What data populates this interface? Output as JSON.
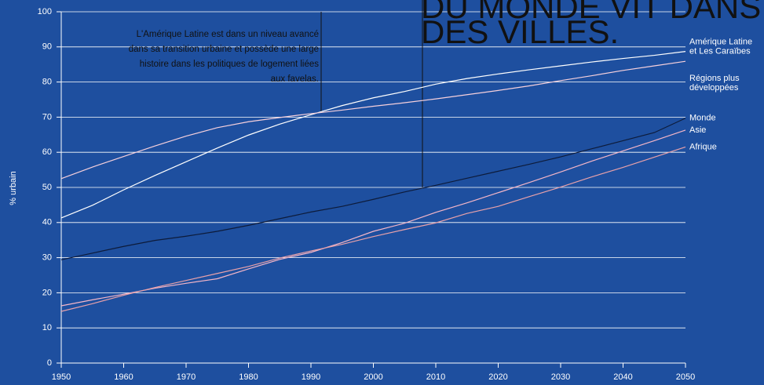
{
  "chart_data": {
    "type": "line",
    "y_label": "% urbain",
    "annotation": [
      "L'Amérique Latine est dans un niveau avancé",
      "dans sa transition urbaine et possède une large",
      "histoire dans les politiques de logement liées",
      "aux favelas."
    ],
    "headline": [
      "DU MONDE VIT DANS",
      "DES VILLES."
    ],
    "x": [
      1950,
      1955,
      1960,
      1965,
      1970,
      1975,
      1980,
      1985,
      1990,
      1995,
      2000,
      2005,
      2010,
      2015,
      2020,
      2025,
      2030,
      2035,
      2040,
      2045,
      2050
    ],
    "xlim": [
      1950,
      2050
    ],
    "xticks": [
      1950,
      1960,
      1970,
      1980,
      1990,
      2000,
      2010,
      2020,
      2030,
      2040,
      2050
    ],
    "ylim": [
      0,
      100
    ],
    "yticks": [
      0,
      10,
      20,
      30,
      40,
      50,
      60,
      70,
      80,
      90,
      100
    ],
    "grid": true,
    "series": [
      {
        "name": "Amérique Latine\net Les Caraïbes",
        "color": "#ffffff",
        "values": [
          41.3,
          44.9,
          49.3,
          53.4,
          57.3,
          61.2,
          64.9,
          68,
          70.7,
          73.3,
          75.5,
          77.3,
          79.4,
          81,
          82.3,
          83.5,
          84.6,
          85.7,
          86.7,
          87.6,
          88.7
        ]
      },
      {
        "name": "Régions plus\ndéveloppées",
        "color": "#f6d0dc",
        "values": [
          52.5,
          55.8,
          58.8,
          61.8,
          64.6,
          67,
          68.7,
          69.9,
          71,
          72,
          73.1,
          74.1,
          75.2,
          76.4,
          77.6,
          78.9,
          80.4,
          81.8,
          83.3,
          84.6,
          85.9
        ]
      },
      {
        "name": "Monde",
        "color": "#0d1b3a",
        "values": [
          29.4,
          31.3,
          33.2,
          34.9,
          36.1,
          37.5,
          39.2,
          41.1,
          43,
          44.6,
          46.6,
          48.7,
          50.6,
          52.6,
          54.6,
          56.6,
          58.7,
          61,
          63.3,
          65.6,
          69.7
        ]
      },
      {
        "name": "Asie",
        "color": "#f4b6c8",
        "values": [
          16.3,
          18,
          19.6,
          21.3,
          22.7,
          24,
          26.8,
          29.5,
          31.5,
          34.3,
          37.5,
          39.8,
          42.9,
          45.6,
          48.5,
          51.4,
          54.4,
          57.5,
          60.4,
          63.3,
          66.3
        ]
      },
      {
        "name": "Afrique",
        "color": "#e8a1aa",
        "values": [
          14.7,
          16.9,
          19.3,
          21.5,
          23.5,
          25.5,
          27.5,
          29.9,
          31.9,
          33.8,
          36,
          38,
          39.9,
          42.6,
          44.6,
          47.4,
          50.1,
          53,
          55.7,
          58.6,
          61.5
        ]
      }
    ]
  }
}
